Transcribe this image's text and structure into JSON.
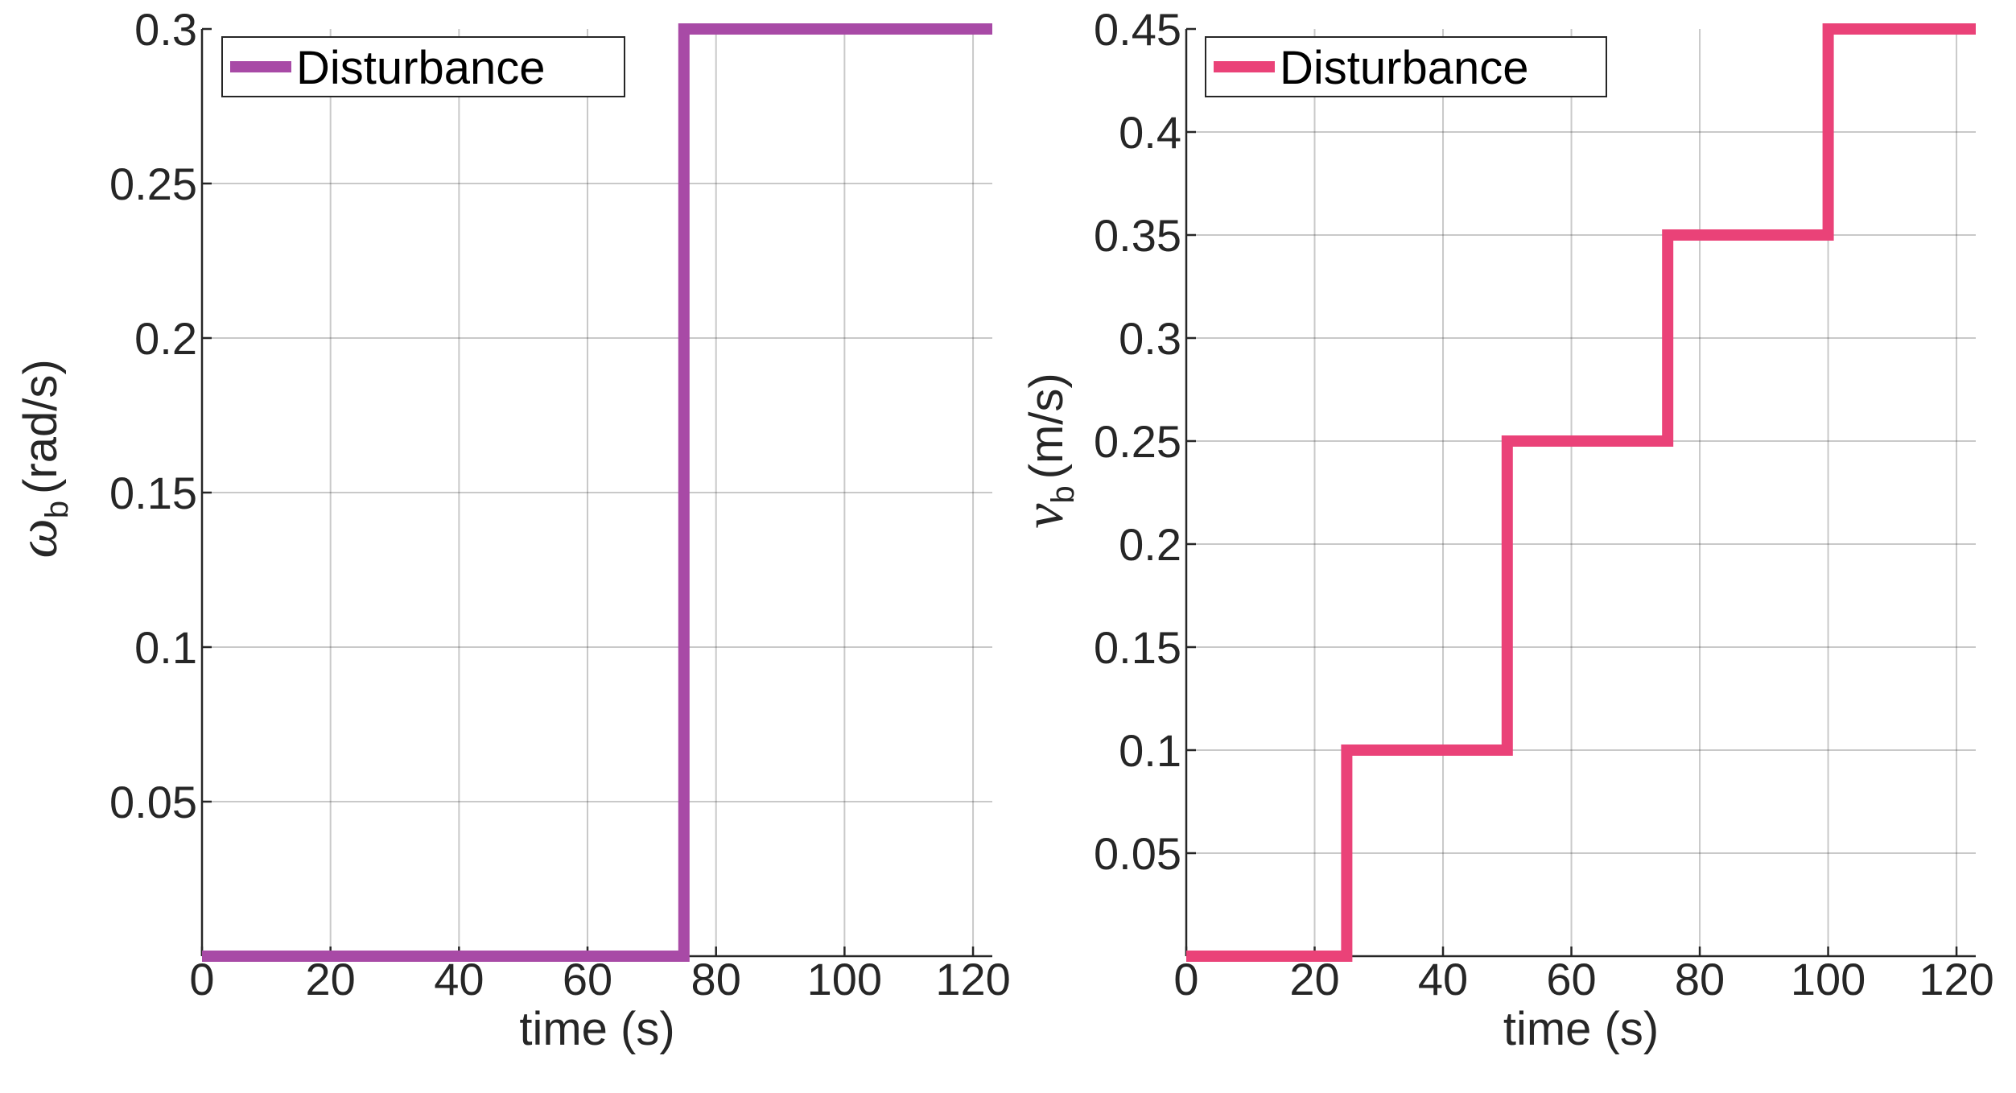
{
  "chart_data": [
    {
      "type": "line",
      "xlabel": "time (s)",
      "ylabel": {
        "symbol": "ω",
        "subscript": "b",
        "unit": "(rad/s)"
      },
      "xlim": [
        0,
        123
      ],
      "ylim": [
        0,
        0.3
      ],
      "x_ticks": [
        "0",
        "20",
        "40",
        "60",
        "80",
        "100",
        "120"
      ],
      "y_ticks": [
        "0.05",
        "0.1",
        "0.15",
        "0.2",
        "0.25",
        "0.3"
      ],
      "grid": true,
      "legend_position": "top-left",
      "series": [
        {
          "name": "Disturbance",
          "color": "#a84aa6",
          "step": true,
          "points": [
            [
              0,
              0
            ],
            [
              75,
              0
            ],
            [
              75,
              0.3
            ],
            [
              123,
              0.3
            ]
          ]
        }
      ]
    },
    {
      "type": "line",
      "xlabel": "time (s)",
      "ylabel": {
        "symbol": "v",
        "subscript": "b",
        "unit": "(m/s)"
      },
      "xlim": [
        0,
        123
      ],
      "ylim": [
        0,
        0.45
      ],
      "x_ticks": [
        "0",
        "20",
        "40",
        "60",
        "80",
        "100",
        "120"
      ],
      "y_ticks": [
        "0.05",
        "0.1",
        "0.15",
        "0.2",
        "0.25",
        "0.3",
        "0.35",
        "0.4",
        "0.45"
      ],
      "grid": true,
      "legend_position": "top-left",
      "series": [
        {
          "name": "Disturbance",
          "color": "#ea4278",
          "step": true,
          "points": [
            [
              0,
              0
            ],
            [
              25,
              0
            ],
            [
              25,
              0.1
            ],
            [
              50,
              0.1
            ],
            [
              50,
              0.25
            ],
            [
              75,
              0.25
            ],
            [
              75,
              0.35
            ],
            [
              100,
              0.35
            ],
            [
              100,
              0.45
            ],
            [
              123,
              0.45
            ]
          ]
        }
      ]
    }
  ]
}
